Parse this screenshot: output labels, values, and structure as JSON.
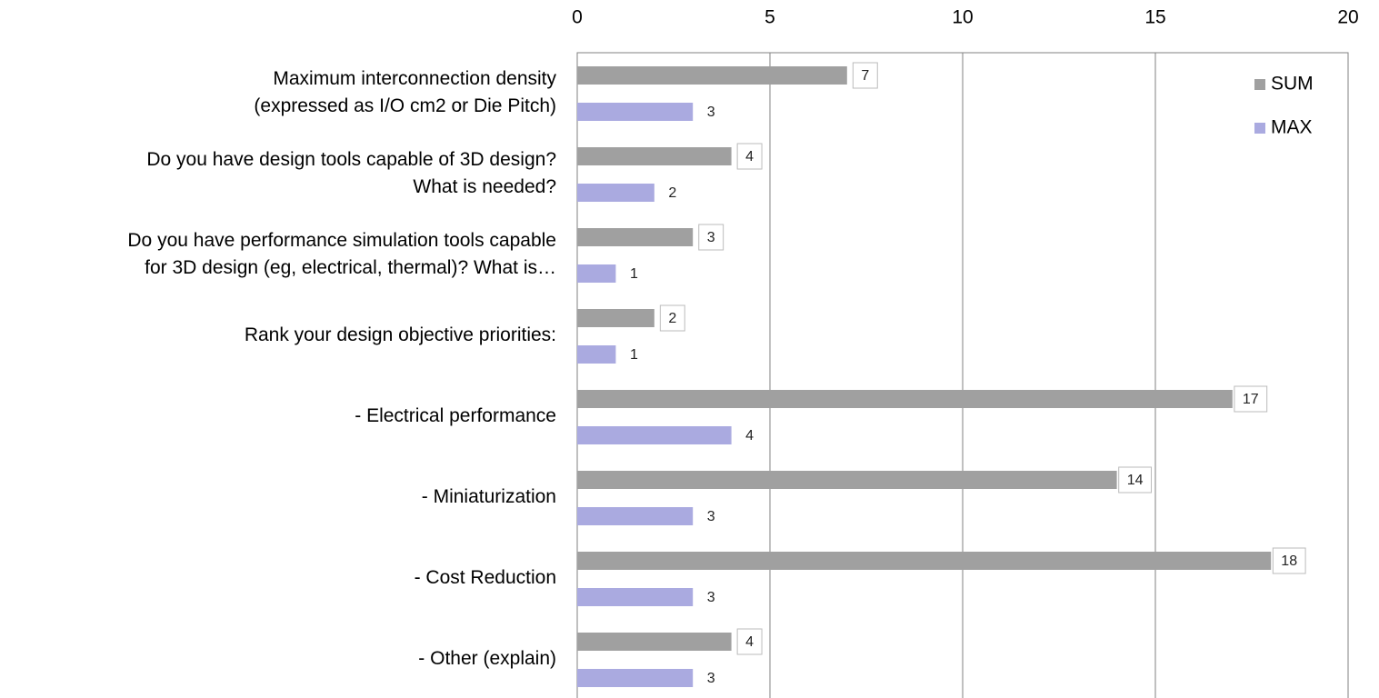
{
  "chart_data": {
    "type": "bar",
    "orientation": "horizontal",
    "categories": [
      "Maximum interconnection density\n(expressed as I/O cm2 or Die Pitch)",
      "Do you have design tools capable of 3D design?\nWhat is needed?",
      "Do you have performance simulation tools capable\nfor 3D design (eg, electrical, thermal)? What is…",
      "Rank your design objective priorities:",
      "- Electrical performance",
      "- Miniaturization",
      "- Cost Reduction",
      "- Other (explain)"
    ],
    "series": [
      {
        "name": "SUM",
        "color": "#a0a0a0",
        "values": [
          7,
          4,
          3,
          2,
          17,
          14,
          18,
          4
        ]
      },
      {
        "name": "MAX",
        "color": "#aaaae0",
        "values": [
          3,
          2,
          1,
          1,
          4,
          3,
          3,
          3
        ]
      }
    ],
    "xlim": [
      0,
      20
    ],
    "xticks": [
      0,
      5,
      10,
      15,
      20
    ],
    "grid": true,
    "legend": "upper right"
  }
}
